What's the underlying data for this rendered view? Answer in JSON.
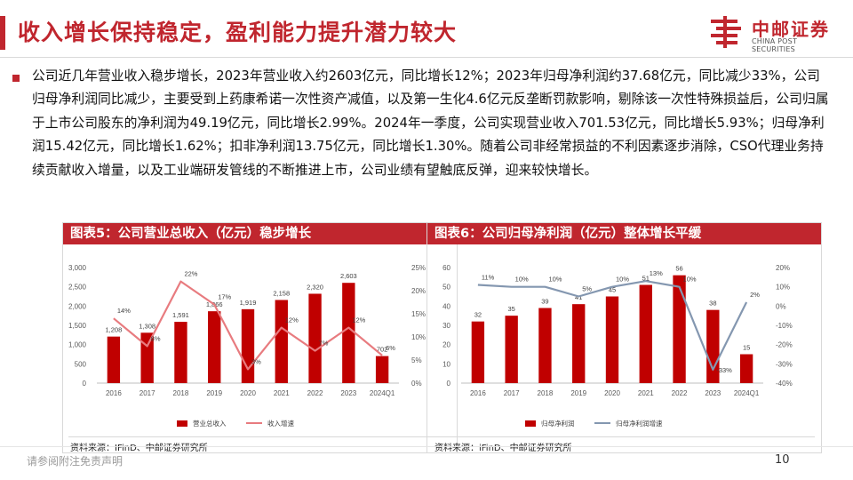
{
  "header": {
    "title": "收入增长保持稳定，盈利能力提升潜力较大",
    "logo_cn": "中邮证券",
    "logo_en": "CHINA POST SECURITIES"
  },
  "body": {
    "paragraph": "公司近几年营业收入稳步增长，2023年营业收入约2603亿元，同比增长12%；2023年归母净利润约37.68亿元，同比减少33%，公司归母净利润同比减少，主要受到上药康希诺一次性资产减值，以及第一生化4.6亿元反垄断罚款影响，剔除该一次性特殊损益后，公司归属于上市公司股东的净利润为49.19亿元，同比增长2.99%。2024年一季度，公司实现营业收入701.53亿元，同比增长5.93%；归母净利润15.42亿元，同比增长1.62%；扣非净利润13.75亿元，同比增长1.30%。随着公司非经常损益的不利因素逐步消除，CSO代理业务持续贡献收入增量，以及工业端研发管线的不断推进上市，公司业绩有望触底反弹，迎来较快增长。"
  },
  "figure5": {
    "heading": "图表5：公司营业总收入（亿元）稳步增长",
    "source": "资料来源：IFinD、中邮证券研究所"
  },
  "figure6": {
    "heading": "图表6：公司归母净利润（亿元）整体增长平缓",
    "source": "资料来源：iFinD、中邮证券研究所"
  },
  "footer": {
    "disclaimer": "请参阅附注免责声明",
    "page": "10"
  },
  "colors": {
    "brand_red": "#c0262e",
    "bar_red": "#c00000",
    "line_pink": "#e87b7f",
    "line_blue": "#8497b0"
  },
  "chart_data": [
    {
      "type": "bar",
      "categories": [
        "2016",
        "2017",
        "2018",
        "2019",
        "2020",
        "2021",
        "2022",
        "2023",
        "2024Q1"
      ],
      "series": [
        {
          "name": "营业总收入",
          "type": "bar",
          "axis": "left",
          "values": [
            1208,
            1308,
            1591,
            1866,
            1919,
            2158,
            2320,
            2603,
            702
          ],
          "labels": [
            "1,208",
            "1,308",
            "1,591",
            "1,866",
            "1,919",
            "2,158",
            "2,320",
            "2,603",
            "702"
          ]
        },
        {
          "name": "收入增速",
          "type": "line",
          "axis": "right",
          "values": [
            14,
            8,
            22,
            17,
            3,
            12,
            7,
            12,
            6
          ],
          "labels": [
            "14%",
            "8%",
            "22%",
            "17%",
            "3%",
            "12%",
            "7%",
            "12%",
            "6%"
          ]
        }
      ],
      "ylim": [
        0,
        3000
      ],
      "yticks": [
        "0",
        "500",
        "1,000",
        "1,500",
        "2,000",
        "2,500",
        "3,000"
      ],
      "y2lim": [
        0,
        25
      ],
      "y2ticks": [
        "0%",
        "5%",
        "10%",
        "15%",
        "20%",
        "25%"
      ],
      "legend_position": "bottom",
      "grid": false
    },
    {
      "type": "bar",
      "categories": [
        "2016",
        "2017",
        "2018",
        "2019",
        "2020",
        "2021",
        "2022",
        "2023",
        "2024Q1"
      ],
      "series": [
        {
          "name": "归母净利润",
          "type": "bar",
          "axis": "left",
          "values": [
            32,
            35,
            39,
            41,
            45,
            51,
            56,
            38,
            15
          ],
          "labels": [
            "32",
            "35",
            "39",
            "41",
            "45",
            "51",
            "56",
            "38",
            "15"
          ]
        },
        {
          "name": "归母净利润增速",
          "type": "line",
          "axis": "right",
          "values": [
            11,
            10,
            10,
            5,
            10,
            13,
            10,
            -33,
            2
          ],
          "labels": [
            "11%",
            "10%",
            "10%",
            "5%",
            "10%",
            "13%",
            "10%",
            "-33%",
            "2%"
          ]
        }
      ],
      "ylim": [
        0,
        60
      ],
      "yticks": [
        "0",
        "10",
        "20",
        "30",
        "40",
        "50",
        "60"
      ],
      "y2lim": [
        -40,
        20
      ],
      "y2ticks": [
        "-40%",
        "-30%",
        "-20%",
        "-10%",
        "0%",
        "10%",
        "20%"
      ],
      "legend_position": "bottom",
      "grid": false
    }
  ]
}
